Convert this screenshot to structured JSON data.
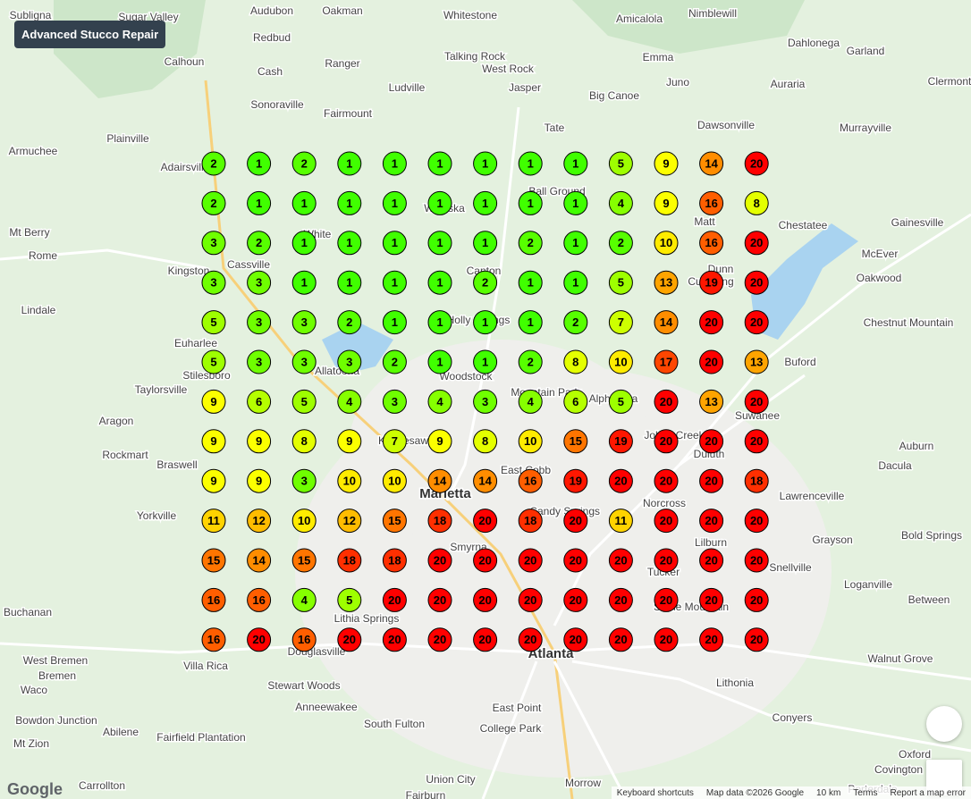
{
  "business_name": "Advanced Stucco Repair",
  "grid": {
    "rows": [
      [
        2,
        1,
        2,
        1,
        1,
        1,
        1,
        1,
        1,
        5,
        9,
        14,
        20
      ],
      [
        2,
        1,
        1,
        1,
        1,
        1,
        1,
        1,
        1,
        4,
        9,
        16,
        8
      ],
      [
        3,
        2,
        1,
        1,
        1,
        1,
        1,
        2,
        1,
        2,
        10,
        16,
        20
      ],
      [
        3,
        3,
        1,
        1,
        1,
        1,
        2,
        1,
        1,
        5,
        13,
        19,
        20
      ],
      [
        5,
        3,
        3,
        2,
        1,
        1,
        1,
        1,
        2,
        7,
        14,
        20,
        20
      ],
      [
        5,
        3,
        3,
        3,
        2,
        1,
        1,
        2,
        8,
        10,
        17,
        20,
        13
      ],
      [
        9,
        6,
        5,
        4,
        3,
        4,
        3,
        4,
        6,
        5,
        20,
        13,
        20
      ],
      [
        9,
        9,
        8,
        9,
        7,
        9,
        8,
        10,
        15,
        19,
        20,
        20,
        20
      ],
      [
        9,
        9,
        3,
        10,
        10,
        14,
        14,
        16,
        19,
        20,
        20,
        20,
        18
      ],
      [
        11,
        12,
        10,
        12,
        15,
        18,
        20,
        18,
        20,
        11,
        20,
        20,
        20
      ],
      [
        15,
        14,
        15,
        18,
        18,
        20,
        20,
        20,
        20,
        20,
        20,
        20,
        20
      ],
      [
        16,
        16,
        4,
        5,
        20,
        20,
        20,
        20,
        20,
        20,
        20,
        20,
        20
      ],
      [
        16,
        20,
        16,
        20,
        20,
        20,
        20,
        20,
        20,
        20,
        20,
        20,
        20
      ]
    ]
  },
  "places": [
    "Subligna",
    "Sugar Valley",
    "Audubon",
    "Oakman",
    "Whitestone",
    "Amicalola",
    "Nimblewill",
    "Dahlonega",
    "Garland",
    "Clermont",
    "Redbud",
    "Calhoun",
    "Cash",
    "Ranger",
    "Talking Rock",
    "West Rock",
    "Emma",
    "Auraria",
    "Ludville",
    "Jasper",
    "Big Canoe",
    "Juno",
    "Sonoraville",
    "Fairmount",
    "Tate",
    "Dawsonville",
    "Murrayville",
    "Plainville",
    "Armuchee",
    "Adairsville",
    "Ball Ground",
    "Waleska",
    "Matt",
    "Chestatee",
    "Gainesville",
    "Mt Berry",
    "Rome",
    "White",
    "Cassville",
    "Kingston",
    "Canton",
    "Dunn",
    "Cumming",
    "McEver",
    "Oakwood",
    "Lindale",
    "Euharlee",
    "Holly Springs",
    "Chestnut Mountain",
    "Stilesboro",
    "Allatoona",
    "Woodstock",
    "Buford",
    "Taylorsville",
    "Mountain Park",
    "Alpharetta",
    "Suwanee",
    "Aragon",
    "Rockmart",
    "Kennesaw",
    "Johns Creek",
    "Duluth",
    "Auburn",
    "Braswell",
    "Dacula",
    "East Cobb",
    "Marietta",
    "Lawrenceville",
    "Yorkville",
    "Norcross",
    "Sandy Springs",
    "Grayson",
    "Bold Springs",
    "Smyrna",
    "Lilburn",
    "Tucker",
    "Snellville",
    "Loganville",
    "Between",
    "Buchanan",
    "Stone Mountain",
    "Lithia Springs",
    "Douglasville",
    "Atlanta",
    "Walnut Grove",
    "West Bremen",
    "Bremen",
    "Villa Rica",
    "Lithonia",
    "Waco",
    "Stewart Woods",
    "Conyers",
    "Anneewakee",
    "East Point",
    "Bowdon Junction",
    "Abilene",
    "Fairfield Plantation",
    "South Fulton",
    "College Park",
    "Mt Zion",
    "Oxford",
    "Covington",
    "Union City",
    "Morrow",
    "Carrollton",
    "Porterdale",
    "Fairburn"
  ],
  "footer": {
    "logo": "Google",
    "shortcuts": "Keyboard shortcuts",
    "map_data": "Map data ©2026 Google",
    "scale": "10 km",
    "terms": "Terms",
    "report": "Report a map error"
  }
}
